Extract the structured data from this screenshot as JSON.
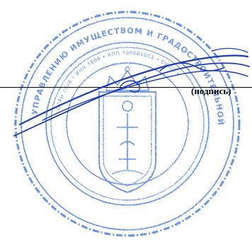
{
  "signature_block": {
    "caption": "(подпись)"
  },
  "seal": {
    "outer_text": "...УПРАВЛЕНИЮ ИМУЩЕСТВОМ И ГРАДОСТРОИТЕЛЬНОЙ...",
    "inner_text": "... ИНН ...",
    "ink_color": "#3a6fd8"
  },
  "colors": {
    "text": "#000000",
    "signature_ink": "#1f3fb0",
    "background": "#ffffff"
  }
}
